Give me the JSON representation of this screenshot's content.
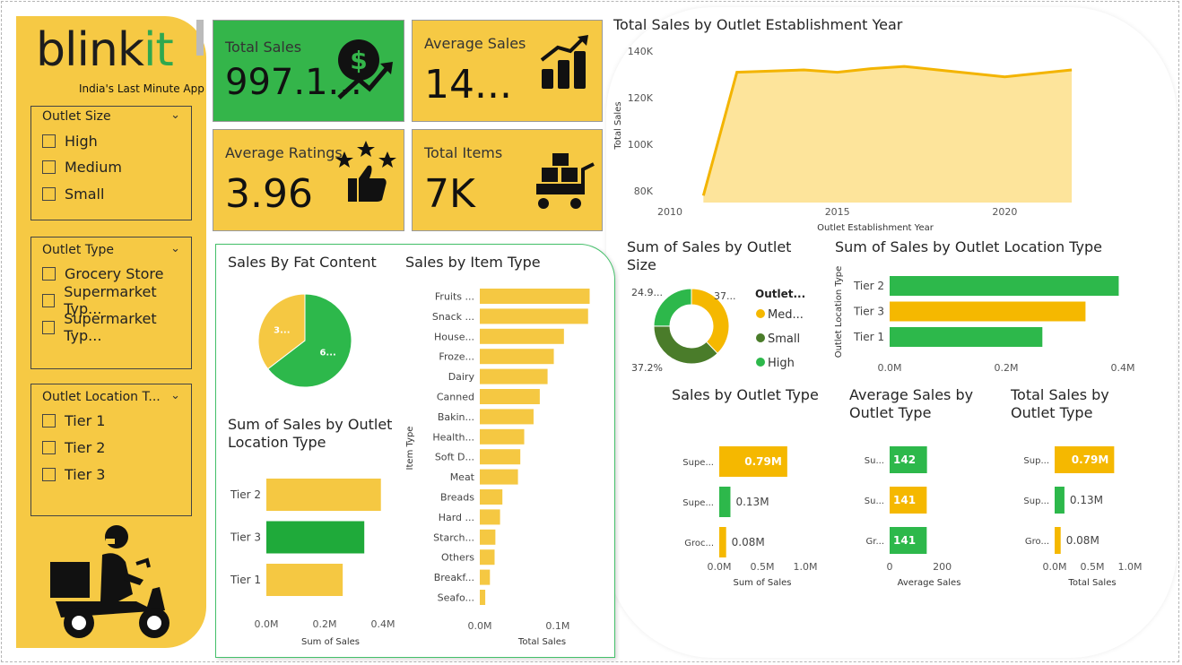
{
  "brand": {
    "name_a": "blink",
    "name_b": "it",
    "tagline": "India's Last Minute App"
  },
  "colors": {
    "yellow": "#f6c944",
    "green": "#34b54a",
    "card_yellow": "#f6c944",
    "bar_yellow": "#f5c842",
    "bar_green": "#2db84b",
    "dark_green": "#4a7c2a",
    "area_fill": "#fde49b",
    "area_line": "#f3b400"
  },
  "filters": {
    "outlet_size": {
      "title": "Outlet Size",
      "options": [
        "High",
        "Medium",
        "Small"
      ]
    },
    "outlet_type": {
      "title": "Outlet Type",
      "options": [
        "Grocery Store",
        "Supermarket Typ...",
        "Supermarket Typ..."
      ]
    },
    "outlet_location": {
      "title": "Outlet Location T...",
      "options": [
        "Tier 1",
        "Tier 2",
        "Tier 3"
      ]
    }
  },
  "kpis": {
    "total_sales": {
      "label": "Total Sales",
      "value": "997.1...",
      "icon": "dollar-growth-icon"
    },
    "average_sales": {
      "label": "Average Sales",
      "value": "14...",
      "icon": "bar-growth-icon"
    },
    "average_ratings": {
      "label": "Average Ratings",
      "value": "3.96",
      "icon": "thumbs-up-stars-icon"
    },
    "total_items": {
      "label": "Total Items",
      "value": "7K",
      "icon": "cart-boxes-icon"
    }
  },
  "chart_data": [
    {
      "id": "year_area",
      "type": "area",
      "title": "Total Sales by Outlet Establishment Year",
      "xlabel": "Outlet Establishment Year",
      "ylabel": "Total Sales",
      "x": [
        2011,
        2012,
        2014,
        2015,
        2016,
        2017,
        2018,
        2020,
        2022
      ],
      "values": [
        78000,
        131000,
        132000,
        131000,
        132500,
        133500,
        132000,
        129000,
        132000
      ],
      "xticks": [
        "2010",
        "2015",
        "2020"
      ],
      "yticks": [
        "80K",
        "100K",
        "120K",
        "140K"
      ],
      "xlim": [
        2010,
        2022.4
      ],
      "ylim": [
        75000,
        142000
      ]
    },
    {
      "id": "fat_pie",
      "type": "pie",
      "title": "Sales By Fat Content",
      "slices": [
        {
          "label": "6...",
          "value": 64.6
        },
        {
          "label": "3...",
          "value": 35.4
        }
      ]
    },
    {
      "id": "item_type",
      "type": "bar",
      "title": "Sales by Item Type",
      "xlabel": "Total Sales",
      "ylabel": "Item Type",
      "categories": [
        "Fruits ...",
        "Snack ...",
        "House...",
        "Froze...",
        "Dairy",
        "Canned",
        "Bakin...",
        "Health...",
        "Soft D...",
        "Meat",
        "Breads",
        "Hard ...",
        "Starch...",
        "Others",
        "Breakf...",
        "Seafo..."
      ],
      "values": [
        0.141,
        0.139,
        0.108,
        0.095,
        0.087,
        0.077,
        0.069,
        0.057,
        0.052,
        0.049,
        0.029,
        0.026,
        0.02,
        0.019,
        0.013,
        0.007
      ],
      "xticks": [
        "0.0M",
        "0.1M"
      ],
      "xlim": [
        0,
        0.16
      ]
    },
    {
      "id": "loc_small",
      "type": "bar",
      "title": "Sum of Sales by Outlet Location Type",
      "xlabel": "Sum of Sales",
      "categories": [
        "Tier 2",
        "Tier 3",
        "Tier 1"
      ],
      "values": [
        0.393,
        0.336,
        0.262
      ],
      "xticks": [
        "0.0M",
        "0.2M",
        "0.4M"
      ],
      "xlim": [
        0,
        0.44
      ]
    },
    {
      "id": "outlet_size_donut",
      "type": "pie",
      "title": "Sum of Sales by Outlet Size",
      "legend_title": "Outlet...",
      "slices": [
        {
          "label": "Med...",
          "value": 37.8
        },
        {
          "label": "Small",
          "value": 37.2
        },
        {
          "label": "High",
          "value": 24.9
        }
      ],
      "data_labels": [
        "37...",
        "37.2%",
        "24.9..."
      ]
    },
    {
      "id": "loc_big",
      "type": "bar",
      "title": "Sum of Sales by Outlet Location Type",
      "ylabel": "Outlet Location Type",
      "categories": [
        "Tier 2",
        "Tier 3",
        "Tier 1"
      ],
      "values": [
        0.393,
        0.336,
        0.262
      ],
      "xticks": [
        "0.0M",
        "0.2M",
        "0.4M"
      ],
      "xlim": [
        0,
        0.4
      ]
    },
    {
      "id": "outlet_type_sum",
      "type": "bar",
      "title": "Sales by Outlet Type",
      "xlabel": "Sum of Sales",
      "categories": [
        "Supe...",
        "Supe...",
        "Groc..."
      ],
      "values": [
        0.79,
        0.13,
        0.08
      ],
      "labels": [
        "0.79M",
        "0.13M",
        "0.08M"
      ],
      "xticks": [
        "0.0M",
        "0.5M",
        "1.0M"
      ],
      "xlim": [
        0,
        1.0
      ]
    },
    {
      "id": "outlet_type_avg",
      "type": "bar",
      "title": "Average Sales by Outlet Type",
      "xlabel": "Average Sales",
      "categories": [
        "Su...",
        "Su...",
        "Gr..."
      ],
      "values": [
        142,
        141,
        141
      ],
      "labels": [
        "142",
        "141",
        "141"
      ],
      "xticks": [
        "0",
        "200"
      ],
      "xlim": [
        0,
        300
      ]
    },
    {
      "id": "outlet_type_total",
      "type": "bar",
      "title": "Total Sales by Outlet Type",
      "xlabel": "Total Sales",
      "categories": [
        "Sup...",
        "Sup...",
        "Gro..."
      ],
      "values": [
        0.79,
        0.13,
        0.08
      ],
      "labels": [
        "0.79M",
        "0.13M",
        "0.08M"
      ],
      "xticks": [
        "0.0M",
        "0.5M",
        "1.0M"
      ],
      "xlim": [
        0,
        1.0
      ]
    }
  ]
}
